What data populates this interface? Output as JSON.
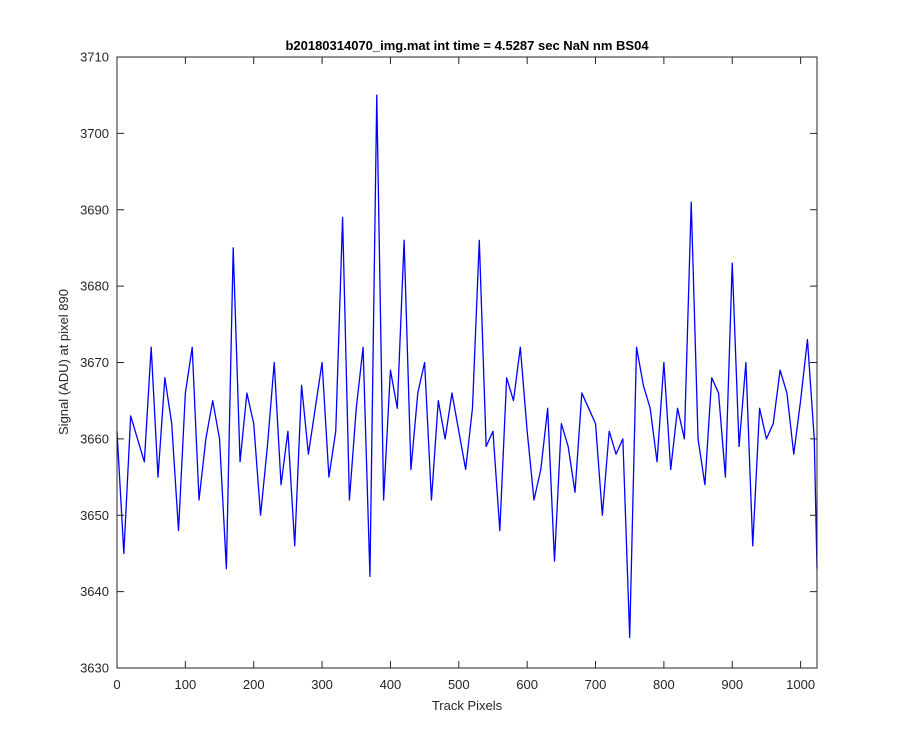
{
  "chart_data": {
    "type": "line",
    "title": "b20180314070_img.mat int time = 4.5287 sec  NaN nm BS04",
    "xlabel": "Track Pixels",
    "ylabel": "Signal (ADU) at pixel 890",
    "xlim": [
      0,
      1024
    ],
    "ylim": [
      3630,
      3710
    ],
    "xticks": [
      0,
      100,
      200,
      300,
      400,
      500,
      600,
      700,
      800,
      900,
      1000
    ],
    "yticks": [
      3630,
      3640,
      3650,
      3660,
      3670,
      3680,
      3690,
      3700,
      3710
    ],
    "xtick_labels": [
      "0",
      "100",
      "200",
      "300",
      "400",
      "500",
      "600",
      "700",
      "800",
      "900",
      "1000"
    ],
    "ytick_labels": [
      "3630",
      "3640",
      "3650",
      "3660",
      "3670",
      "3680",
      "3690",
      "3700",
      "3710"
    ],
    "grid": false,
    "line_color": "#0000ff",
    "series": [
      {
        "x": [
          0,
          10,
          20,
          30,
          40,
          50,
          60,
          70,
          80,
          90,
          100,
          110,
          120,
          130,
          140,
          150,
          160,
          170,
          180,
          190,
          200,
          210,
          220,
          230,
          240,
          250,
          260,
          270,
          280,
          290,
          300,
          310,
          320,
          330,
          340,
          350,
          360,
          370,
          380,
          390,
          400,
          410,
          420,
          430,
          440,
          450,
          460,
          470,
          480,
          490,
          500,
          510,
          520,
          530,
          540,
          550,
          560,
          570,
          580,
          590,
          600,
          610,
          620,
          630,
          640,
          650,
          660,
          670,
          680,
          690,
          700,
          710,
          720,
          730,
          740,
          750,
          760,
          770,
          780,
          790,
          800,
          810,
          820,
          830,
          840,
          850,
          860,
          870,
          880,
          890,
          900,
          910,
          920,
          930,
          940,
          950,
          960,
          970,
          980,
          990,
          1000,
          1010,
          1020,
          1024
        ],
        "y": [
          3661,
          3645,
          3663,
          3660,
          3657,
          3672,
          3655,
          3668,
          3662,
          3648,
          3666,
          3672,
          3652,
          3660,
          3665,
          3660,
          3643,
          3685,
          3657,
          3666,
          3662,
          3650,
          3659,
          3670,
          3654,
          3661,
          3646,
          3667,
          3658,
          3664,
          3670,
          3655,
          3661,
          3689,
          3652,
          3664,
          3672,
          3642,
          3705,
          3652,
          3669,
          3664,
          3686,
          3656,
          3666,
          3670,
          3652,
          3665,
          3660,
          3666,
          3661,
          3656,
          3664,
          3686,
          3659,
          3661,
          3648,
          3668,
          3665,
          3672,
          3661,
          3652,
          3656,
          3664,
          3644,
          3662,
          3659,
          3653,
          3666,
          3664,
          3662,
          3650,
          3661,
          3658,
          3660,
          3634,
          3672,
          3667,
          3664,
          3657,
          3670,
          3656,
          3664,
          3660,
          3691,
          3660,
          3654,
          3668,
          3666,
          3655,
          3683,
          3659,
          3670,
          3646,
          3664,
          3660,
          3662,
          3669,
          3666,
          3658,
          3665,
          3673,
          3660,
          3643
        ]
      }
    ]
  }
}
